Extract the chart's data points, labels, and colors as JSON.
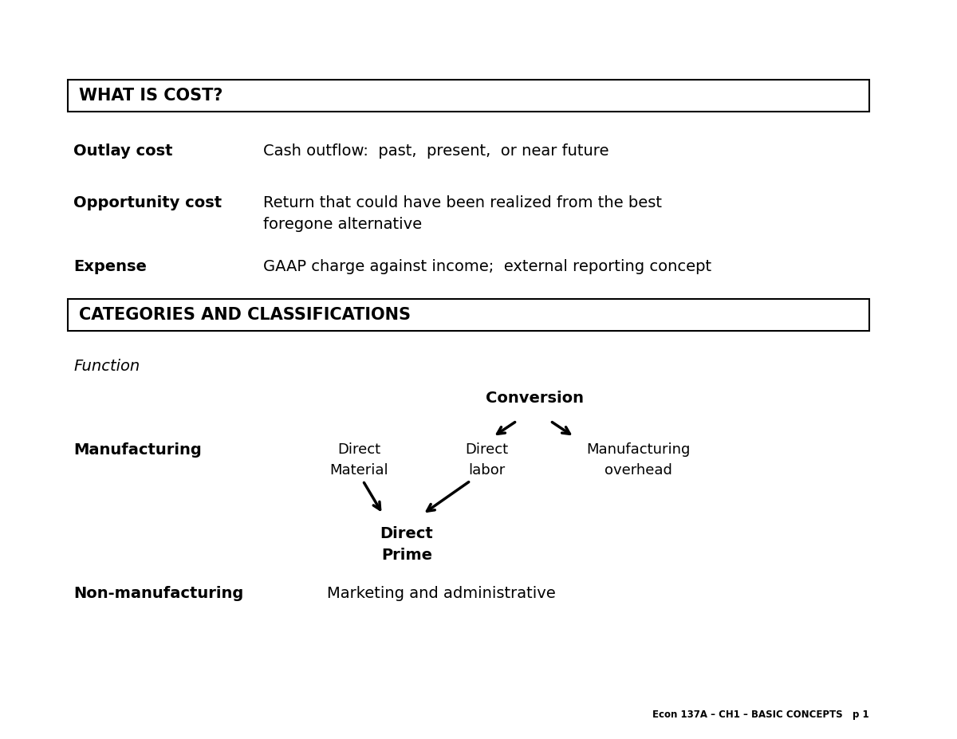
{
  "bg_color": "#ffffff",
  "text_color": "#000000",
  "fig_width": 12.0,
  "fig_height": 9.27,
  "box1_title": "WHAT IS COST?",
  "box2_title": "CATEGORIES AND CLASSIFICATIONS",
  "rows": [
    {
      "label": "Outlay cost",
      "desc": "Cash outflow:  past,  present,  or near future"
    },
    {
      "label": "Opportunity cost",
      "desc": "Return that could have been realized from the best\nforegone alternative"
    },
    {
      "label": "Expense",
      "desc": "GAAP charge against income;  external reporting concept"
    }
  ],
  "function_label": "Function",
  "manufacturing_label": "Manufacturing",
  "non_manufacturing_label": "Non-manufacturing",
  "direct_material": "Direct\nMaterial",
  "direct_labor": "Direct\nlabor",
  "manufacturing_overhead": "Manufacturing\noverhead",
  "conversion": "Conversion",
  "direct_prime": "Direct\nPrime",
  "non_mfg_desc": "Marketing and administrative",
  "footer": "Econ 137A – CH1 – BASIC CONCEPTS   p 1"
}
